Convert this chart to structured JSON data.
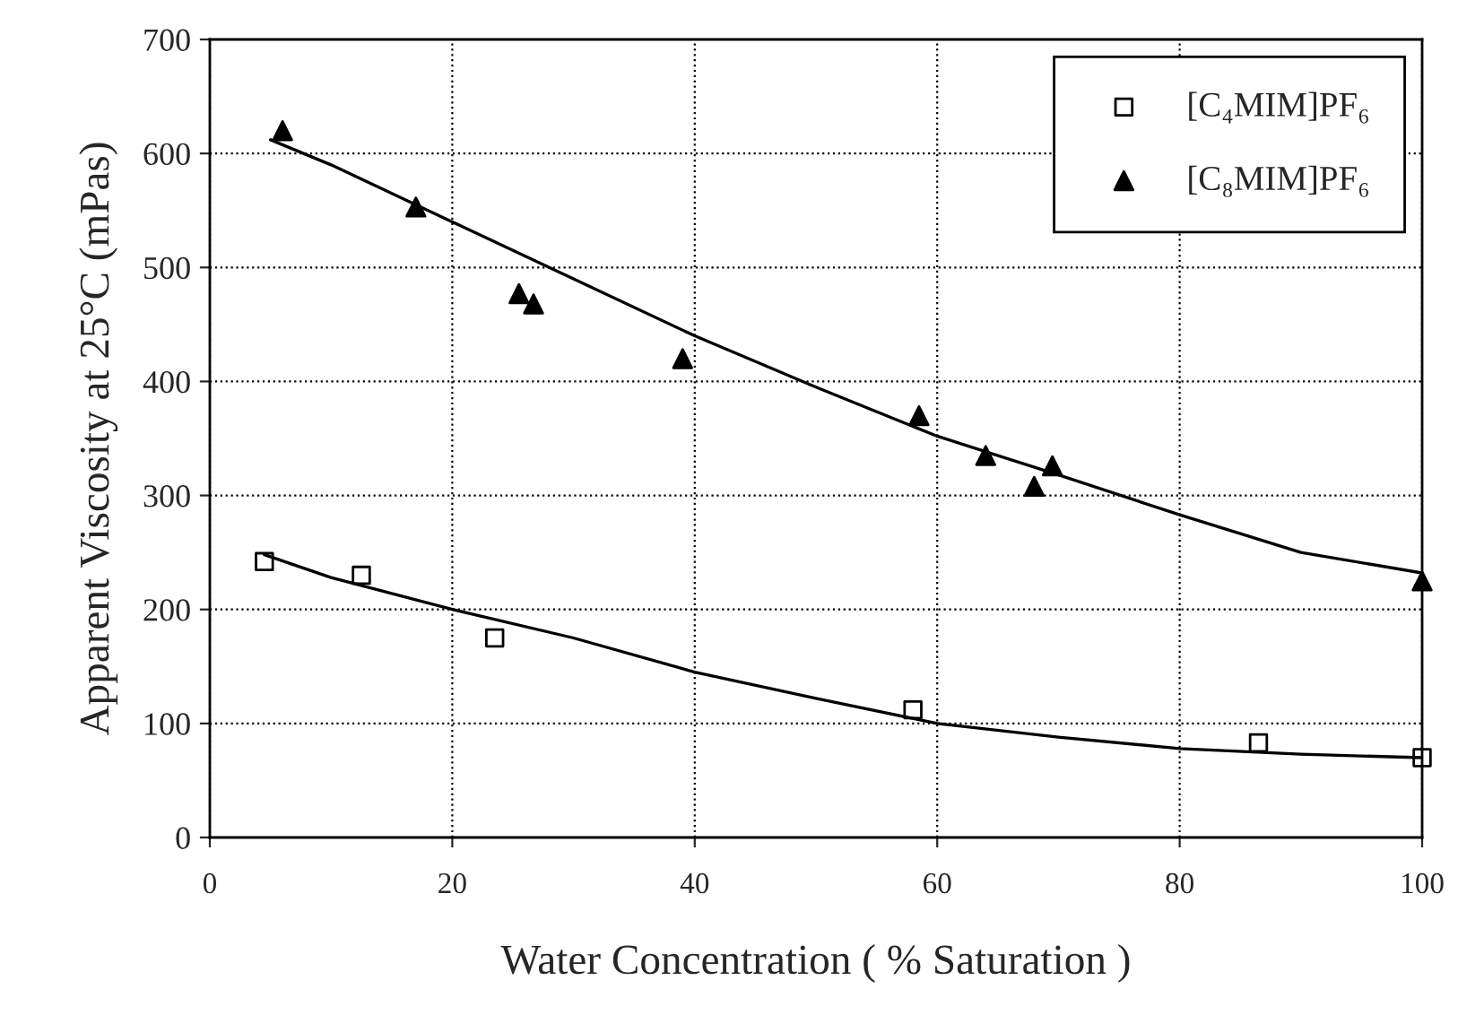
{
  "chart_data": {
    "type": "scatter",
    "xlabel": "Water Concentration ( % Saturation )",
    "ylabel": "Apparent Viscosity at 25°C (mPas)",
    "xlim": [
      0,
      100
    ],
    "xticks": [
      0,
      20,
      40,
      60,
      80,
      100
    ],
    "ylim": [
      0,
      700
    ],
    "yticks": [
      0,
      100,
      200,
      300,
      400,
      500,
      600,
      700
    ],
    "grid": true,
    "legend": "top right",
    "series": [
      {
        "name": "[C₄MIM]PF₆",
        "marker": "square",
        "color": "#000000",
        "x": [
          4.5,
          12.5,
          23.5,
          58,
          86.5,
          100
        ],
        "values": [
          242,
          230,
          175,
          112,
          83,
          70
        ]
      },
      {
        "name": "[C₈MIM]PF₆",
        "marker": "triangle",
        "color": "#000000",
        "x": [
          6,
          17,
          25.5,
          26.7,
          39,
          58.5,
          64,
          68,
          69.5,
          100
        ],
        "values": [
          620,
          553,
          477,
          468,
          420,
          370,
          335,
          308,
          326,
          225
        ]
      },
      {
        "type": "line",
        "marker": "none",
        "line_style": "solid",
        "color": "#000000",
        "x": [
          4.5,
          10,
          20,
          30,
          40,
          50,
          60,
          70,
          80,
          90,
          100
        ],
        "values": [
          248,
          228,
          200,
          175,
          145,
          122,
          100,
          88,
          78,
          73,
          70
        ]
      },
      {
        "type": "line",
        "marker": "none",
        "line_style": "solid",
        "color": "#000000",
        "x": [
          5,
          10,
          20,
          30,
          40,
          50,
          60,
          70,
          80,
          90,
          100
        ],
        "values": [
          612,
          590,
          540,
          490,
          440,
          395,
          352,
          318,
          283,
          250,
          232
        ]
      }
    ]
  }
}
